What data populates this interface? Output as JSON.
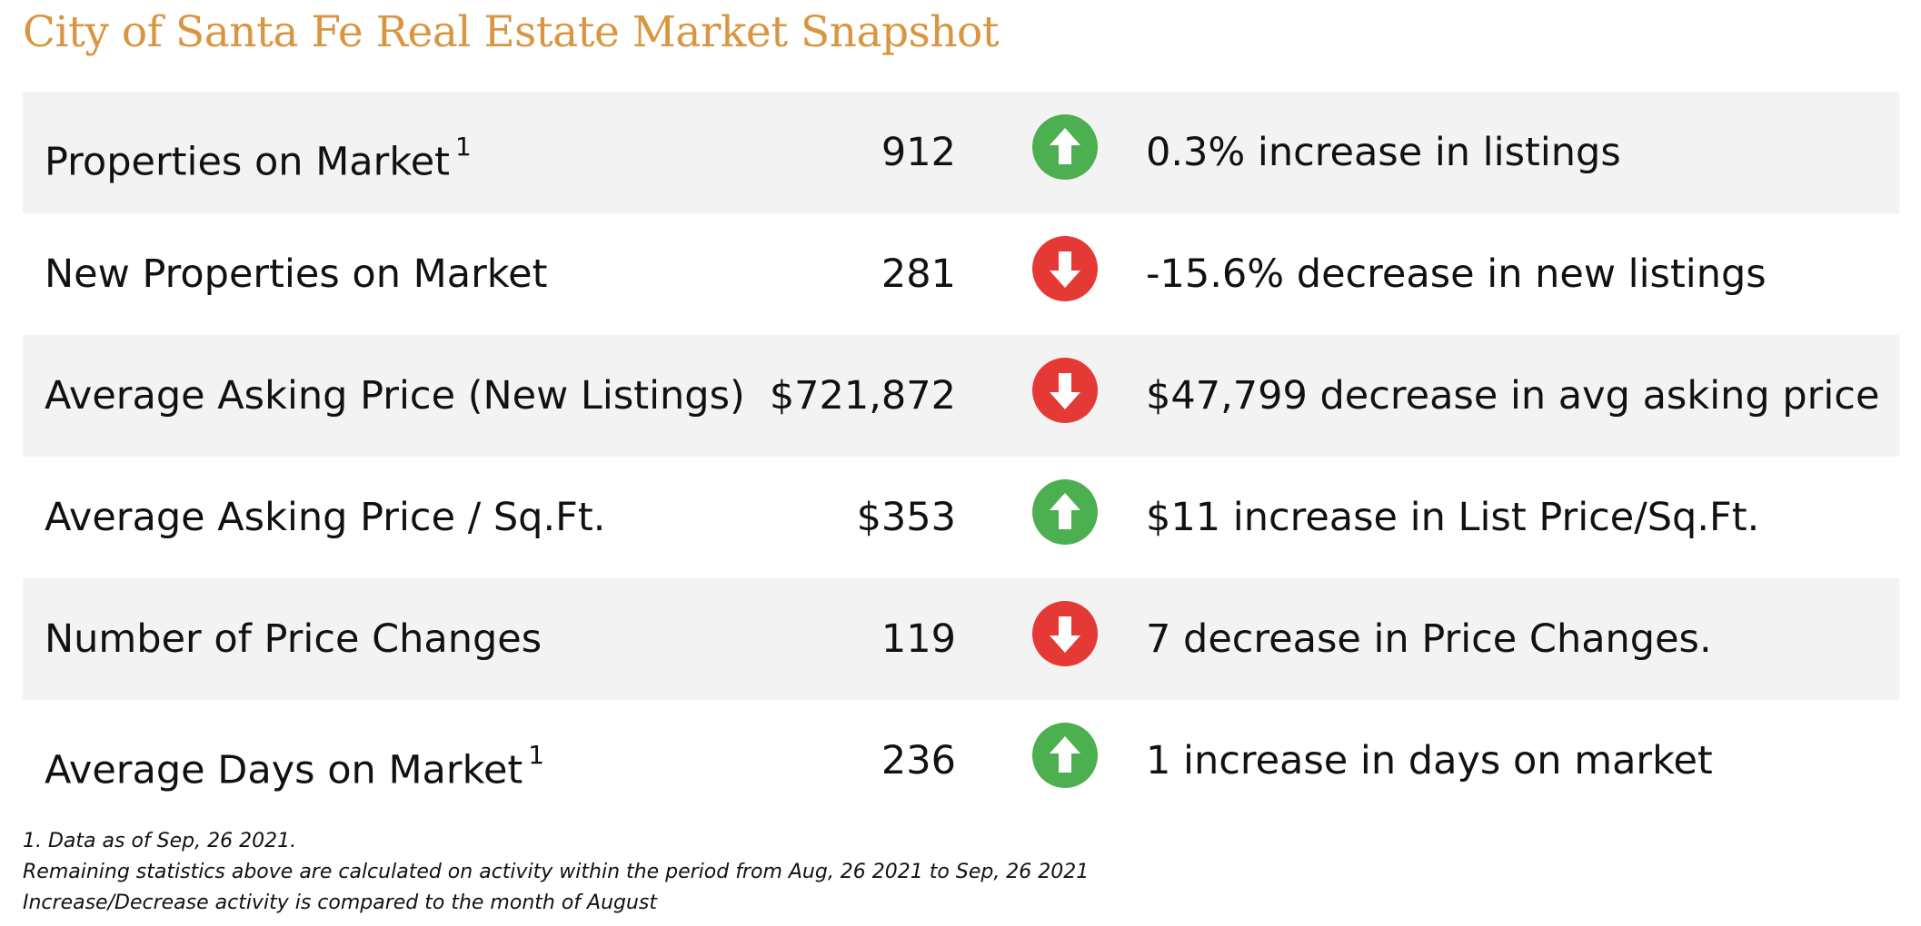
{
  "title": "City of Santa Fe Real Estate Market Snapshot",
  "colors": {
    "title": "#d9953f",
    "up": "#4caf50",
    "down": "#e53935",
    "shaded_row": "#f3f3f3"
  },
  "rows": [
    {
      "label": "Properties on Market",
      "footnote_marker": "1",
      "value": "912",
      "direction": "up",
      "icon": "arrow-up-icon",
      "change": "0.3% increase in listings"
    },
    {
      "label": "New Properties on Market",
      "footnote_marker": "",
      "value": "281",
      "direction": "down",
      "icon": "arrow-down-icon",
      "change": "-15.6% decrease in new listings"
    },
    {
      "label": "Average Asking Price (New Listings)",
      "footnote_marker": "",
      "value": "$721,872",
      "direction": "down",
      "icon": "arrow-down-icon",
      "change": "$47,799 decrease in avg asking price"
    },
    {
      "label": "Average Asking Price / Sq.Ft.",
      "footnote_marker": "",
      "value": "$353",
      "direction": "up",
      "icon": "arrow-up-icon",
      "change": "$11 increase in List Price/Sq.Ft."
    },
    {
      "label": "Number of Price Changes",
      "footnote_marker": "",
      "value": "119",
      "direction": "down",
      "icon": "arrow-down-icon",
      "change": "7 decrease in Price Changes."
    },
    {
      "label": "Average Days on Market",
      "footnote_marker": "1",
      "value": "236",
      "direction": "up",
      "icon": "arrow-up-icon",
      "change": "1 increase in days on market"
    }
  ],
  "footnotes": [
    "1. Data as of Sep, 26 2021.",
    "Remaining statistics above are calculated on activity within the period from Aug, 26 2021 to Sep, 26 2021",
    "Increase/Decrease activity is compared to the month of August"
  ]
}
